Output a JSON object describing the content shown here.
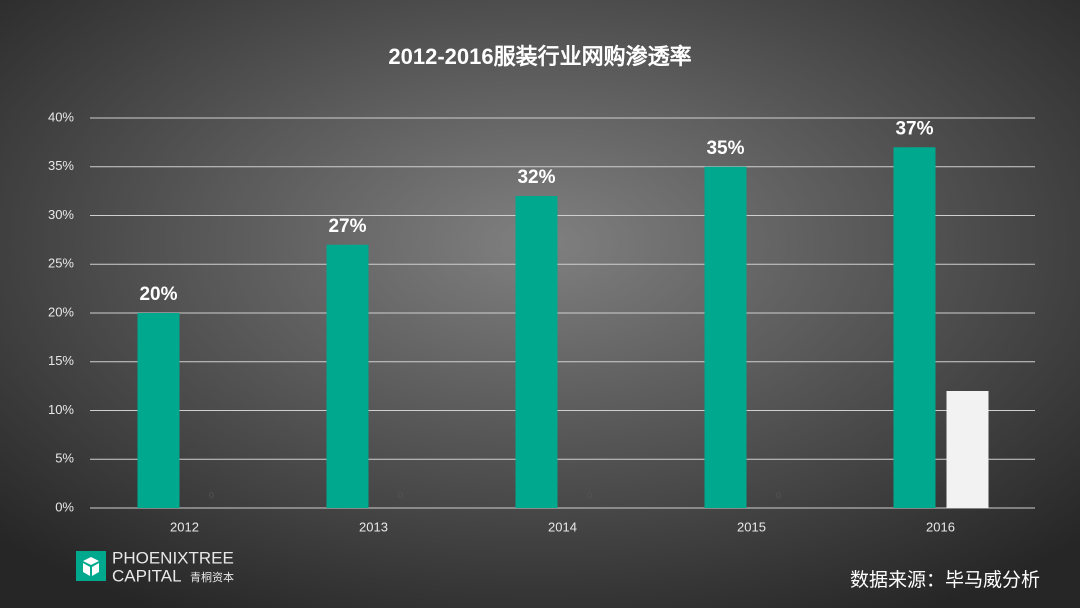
{
  "chart_data": {
    "type": "bar",
    "title": "2012-2016服装行业网购渗透率",
    "categories": [
      "2012",
      "2013",
      "2014",
      "2015",
      "2016"
    ],
    "series": [
      {
        "color": "#00a88e",
        "values": [
          20,
          27,
          32,
          35,
          37
        ],
        "value_labels": [
          "20%",
          "27%",
          "32%",
          "35%",
          "37%"
        ]
      },
      {
        "color": "#f2f2f2",
        "values": [
          0,
          0,
          0,
          0,
          12
        ],
        "value_labels": [
          "0",
          "0",
          "0",
          "0",
          null
        ]
      }
    ],
    "ylim": [
      0,
      40
    ],
    "yticks": [
      {
        "value": 0,
        "label": "0%"
      },
      {
        "value": 5,
        "label": "5%"
      },
      {
        "value": 10,
        "label": "10%"
      },
      {
        "value": 15,
        "label": "15%"
      },
      {
        "value": 20,
        "label": "20%"
      },
      {
        "value": 25,
        "label": "25%"
      },
      {
        "value": 30,
        "label": "30%"
      },
      {
        "value": 35,
        "label": "35%"
      },
      {
        "value": 40,
        "label": "40%"
      }
    ],
    "grid": true
  },
  "footer": {
    "logo_line1": "PHOENIXTREE",
    "logo_line2": "CAPITAL",
    "logo_cn": "青桐资本",
    "source": "数据来源：毕马威分析"
  }
}
